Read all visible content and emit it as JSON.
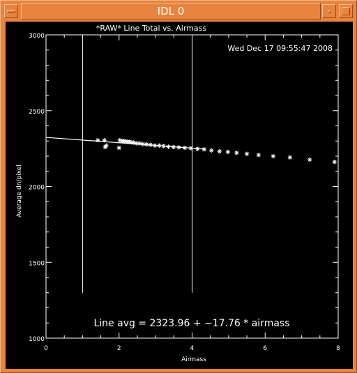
{
  "window": {
    "title": "IDL 0",
    "background": "#e8843e",
    "buttons": [
      "window-menu-icon",
      "minimize-icon",
      "maximize-icon"
    ]
  },
  "plot_window": {
    "timestamp": "Wed Dec 17 09:55:47 2008",
    "fit_annotation": "Line avg = 2323.96 + −17.76 * airmass",
    "background": "#000000",
    "foreground": "#ffffff"
  },
  "chart_data": {
    "type": "scatter",
    "title": "*RAW* Line Total vs. Airmass",
    "xlabel": "Airmass",
    "ylabel": "Average dn/pixel",
    "xlim": [
      0,
      8
    ],
    "ylim": [
      1000,
      3000
    ],
    "x_ticks": [
      "0",
      "2",
      "4",
      "6",
      "8"
    ],
    "y_ticks": [
      "1000",
      "1500",
      "2000",
      "2500",
      "3000"
    ],
    "grid": false,
    "marker": "asterisk",
    "series": [
      {
        "x": [
          1.42,
          1.6,
          1.62,
          1.65,
          2.0,
          2.02,
          2.08,
          2.13,
          2.18,
          2.23,
          2.28,
          2.33,
          2.4,
          2.48,
          2.56,
          2.65,
          2.75,
          2.86,
          2.98,
          3.1,
          3.22,
          3.35,
          3.49,
          3.64,
          3.8,
          3.97,
          4.15,
          4.33,
          4.53,
          4.75,
          4.98,
          5.22,
          5.5,
          5.82,
          6.22,
          6.68,
          7.22,
          7.9
        ],
        "y": [
          2305,
          2305,
          2260,
          2270,
          2255,
          2305,
          2300,
          2300,
          2298,
          2295,
          2295,
          2292,
          2290,
          2285,
          2285,
          2280,
          2278,
          2275,
          2270,
          2270,
          2267,
          2262,
          2260,
          2258,
          2255,
          2252,
          2248,
          2245,
          2238,
          2232,
          2228,
          2222,
          2215,
          2208,
          2200,
          2192,
          2177,
          2162
        ]
      }
    ],
    "fit_line": {
      "intercept": 2323.96,
      "slope": -17.76,
      "x_range": [
        0,
        4.3
      ]
    },
    "markers": {
      "vertical_lines_x": [
        1.0,
        4.0
      ],
      "vertical_lines_y_range": [
        1300,
        2990
      ]
    }
  }
}
